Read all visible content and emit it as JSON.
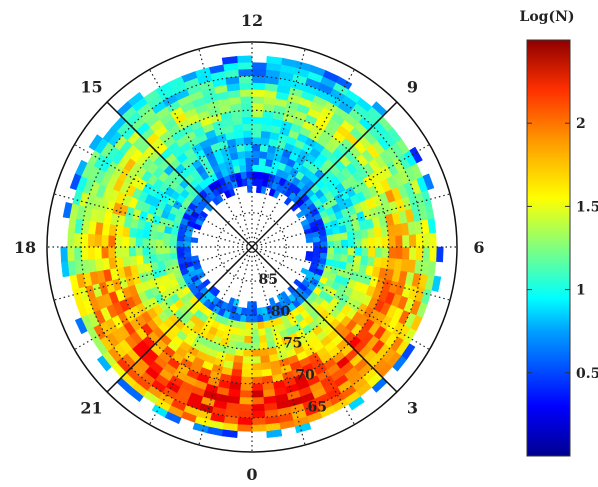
{
  "chart_data": {
    "type": "heatmap",
    "projection": "polar-mlt-mlat",
    "title": "",
    "colorbar": {
      "title": "Log(N)",
      "range": [
        0,
        2.5
      ],
      "ticks": [
        "0.5",
        "1",
        "1.5",
        "2"
      ],
      "tick_values": [
        0.5,
        1,
        1.5,
        2
      ],
      "colormap": "jet"
    },
    "mlt_labels": [
      "12",
      "9",
      "6",
      "3",
      "0",
      "21",
      "18",
      "15"
    ],
    "mlt_values": [
      12,
      9,
      6,
      3,
      0,
      21,
      18,
      15
    ],
    "mlat_labels": [
      "85",
      "80",
      "75",
      "70",
      "65"
    ],
    "mlat_values": [
      85,
      80,
      75,
      70,
      65
    ],
    "mlat_range": [
      60,
      90
    ],
    "grid": true,
    "data_grid": {
      "mlat_bins_start": 62,
      "mlat_bins_end": 82,
      "mlat_bin_width": 1,
      "mlt_bin_width_hours": 0.3,
      "description_of_pattern": "Low counts (blue) poleward of ~80 MLAT, moderate (cyan-green) mid-latitudes, highest counts (orange-red) in the nightside 20-04 MLT sector at 65-72 MLAT and in a ring near 68-70 MLAT"
    }
  }
}
